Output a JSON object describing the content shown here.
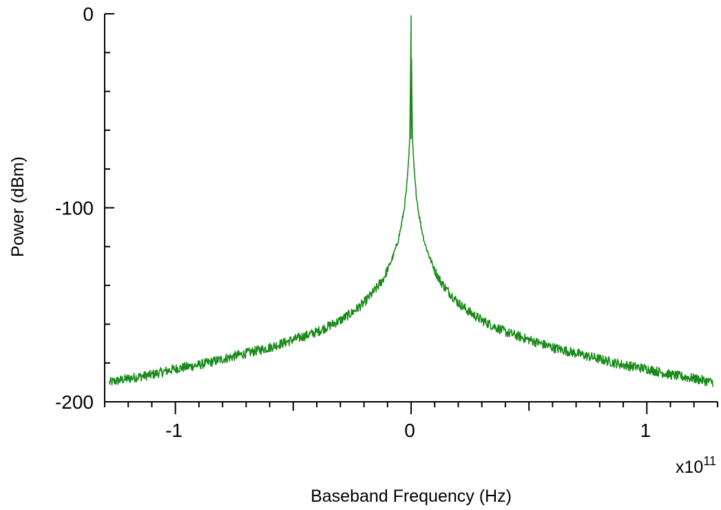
{
  "chart_data": {
    "type": "line",
    "title": "",
    "xlabel": "Baseband Frequency (Hz)",
    "ylabel": "Power (dBm)",
    "x_multiplier_base": "x10",
    "x_multiplier_exponent": "11",
    "xlim": [
      -1.3,
      1.3
    ],
    "ylim": [
      -200,
      0
    ],
    "x_major_ticks": [
      -1,
      0,
      1
    ],
    "x_tick_labels": [
      "-1",
      "0",
      "1"
    ],
    "y_major_ticks": [
      -200,
      -100,
      0
    ],
    "y_tick_labels": [
      "-200",
      "-100",
      "0"
    ],
    "grid": false,
    "line_color": "#1a8a1a",
    "series": [
      {
        "x": [
          -1.28,
          -1.2,
          -1.1,
          -1.0,
          -0.9,
          -0.8,
          -0.7,
          -0.6,
          -0.5,
          -0.4,
          -0.35,
          -0.3,
          -0.25,
          -0.2,
          -0.15,
          -0.12,
          -0.1,
          -0.08,
          -0.06,
          -0.05,
          -0.04,
          -0.03,
          -0.02,
          -0.015,
          -0.01,
          -0.005,
          0.0,
          0.005,
          0.01,
          0.015,
          0.02,
          0.03,
          0.04,
          0.05,
          0.06,
          0.08,
          0.1,
          0.12,
          0.15,
          0.2,
          0.25,
          0.3,
          0.35,
          0.4,
          0.5,
          0.6,
          0.7,
          0.8,
          0.9,
          1.0,
          1.1,
          1.2,
          1.28
        ],
        "y": [
          -190,
          -188,
          -186,
          -183,
          -181,
          -178,
          -175,
          -172,
          -168,
          -164,
          -161,
          -158,
          -154,
          -149,
          -142,
          -137,
          -132,
          -126,
          -119,
          -114,
          -108,
          -101,
          -91,
          -84,
          -74,
          -62,
          -1,
          -62,
          -74,
          -84,
          -91,
          -101,
          -108,
          -114,
          -119,
          -126,
          -132,
          -137,
          -142,
          -149,
          -154,
          -158,
          -161,
          -164,
          -168,
          -172,
          -175,
          -178,
          -181,
          -183,
          -186,
          -188,
          -190
        ]
      }
    ]
  }
}
